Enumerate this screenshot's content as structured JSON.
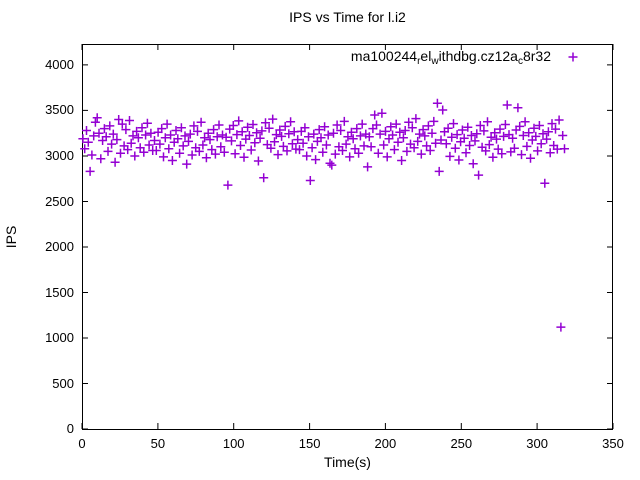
{
  "title": "IPS vs Time for l.i2",
  "axes": {
    "xlabel": "Time(s)",
    "ylabel": "IPS",
    "x_ticks": [
      0,
      50,
      100,
      150,
      200,
      250,
      300,
      350
    ],
    "y_ticks": [
      0,
      500,
      1000,
      1500,
      2000,
      2500,
      3000,
      3500,
      4000
    ],
    "x_range": [
      0,
      350
    ],
    "y_range": [
      0,
      4230
    ]
  },
  "legend": {
    "position": "top-right-inside",
    "marker": "plus",
    "marker_color": "#9400D3",
    "segments": [
      {
        "text": "ma100244",
        "sub": false
      },
      {
        "text": "r",
        "sub": true
      },
      {
        "text": "el",
        "sub": false
      },
      {
        "text": "w",
        "sub": true
      },
      {
        "text": "ithdbg.cz12a",
        "sub": false
      },
      {
        "text": "c",
        "sub": true
      },
      {
        "text": "8r32",
        "sub": false
      }
    ]
  },
  "colors": {
    "marker": "#9400D3",
    "axis": "#000000",
    "background": "#ffffff"
  },
  "chart_data": {
    "type": "scatter",
    "title": "IPS vs Time for l.i2",
    "xlabel": "Time(s)",
    "ylabel": "IPS",
    "xlim": [
      0,
      350
    ],
    "ylim": [
      0,
      4230
    ],
    "grid": false,
    "legend_position": "top-right",
    "marker": "plus",
    "marker_color": "#9400D3",
    "series": [
      {
        "name": "ma100244_rel_withdbg.cz12a_c8r32",
        "sampling": "uniform",
        "t_start": 0.6,
        "t_step": 1.18,
        "ips": [
          3190,
          3080,
          3280,
          3150,
          2830,
          3010,
          3220,
          3370,
          3420,
          3250,
          2970,
          3170,
          3300,
          3210,
          3050,
          3330,
          3130,
          3240,
          2930,
          3180,
          3400,
          3030,
          3350,
          3110,
          3290,
          3070,
          3390,
          3140,
          3220,
          3000,
          3270,
          3200,
          3090,
          3310,
          3040,
          3230,
          3360,
          3120,
          3250,
          3060,
          3170,
          3060,
          3260,
          3130,
          3300,
          2990,
          3200,
          3350,
          3080,
          3230,
          2950,
          3150,
          3280,
          3190,
          3030,
          3310,
          3110,
          3220,
          2910,
          3160,
          3240,
          3010,
          3330,
          3090,
          3270,
          3050,
          3370,
          3120,
          3200,
          2980,
          3250,
          3180,
          3070,
          3290,
          3020,
          3210,
          3340,
          3100,
          3230,
          3040,
          3205,
          2680,
          3295,
          3165,
          3335,
          3025,
          3235,
          3385,
          3115,
          3265,
          2985,
          3185,
          3315,
          3225,
          3065,
          3345,
          3145,
          3255,
          2945,
          3195,
          3275,
          2760,
          3365,
          3125,
          3305,
          3085,
          3405,
          3155,
          3235,
          3015,
          3285,
          3215,
          3105,
          3325,
          3055,
          3245,
          3375,
          3135,
          3265,
          3075,
          3180,
          3070,
          3270,
          3140,
          3310,
          3000,
          3210,
          2730,
          3090,
          3240,
          2960,
          3160,
          3290,
          3200,
          3040,
          3320,
          3120,
          3230,
          2920,
          2900,
          3250,
          3020,
          3340,
          3100,
          3280,
          3060,
          3380,
          3130,
          3210,
          2990,
          3260,
          3190,
          3080,
          3300,
          3030,
          3220,
          3350,
          3110,
          3240,
          2880,
          3210,
          3100,
          3300,
          3450,
          3340,
          3030,
          3240,
          3470,
          3120,
          3270,
          2990,
          3190,
          3320,
          3230,
          3070,
          3350,
          3150,
          3260,
          2950,
          3200,
          3280,
          3050,
          3370,
          3130,
          3310,
          3090,
          3410,
          3160,
          3240,
          3020,
          3290,
          3220,
          3110,
          3330,
          3060,
          3250,
          3380,
          3140,
          3580,
          2830,
          3175,
          3505,
          3265,
          3135,
          3305,
          2995,
          3205,
          3355,
          3085,
          3235,
          2955,
          3155,
          3285,
          3195,
          3035,
          3315,
          3115,
          3225,
          2915,
          3165,
          3245,
          2790,
          3335,
          3095,
          3275,
          3055,
          3375,
          3125,
          3205,
          2985,
          3255,
          3185,
          3075,
          3295,
          3025,
          3215,
          3345,
          3560,
          3235,
          3045,
          3195,
          3085,
          3285,
          3530,
          3325,
          3015,
          3225,
          3375,
          3105,
          3255,
          2975,
          3175,
          3305,
          3215,
          3055,
          3335,
          3135,
          3245,
          2700,
          3185,
          3265,
          3035,
          3355,
          3115,
          3295,
          3075,
          3395,
          1120,
          3225,
          3080
        ]
      }
    ]
  }
}
